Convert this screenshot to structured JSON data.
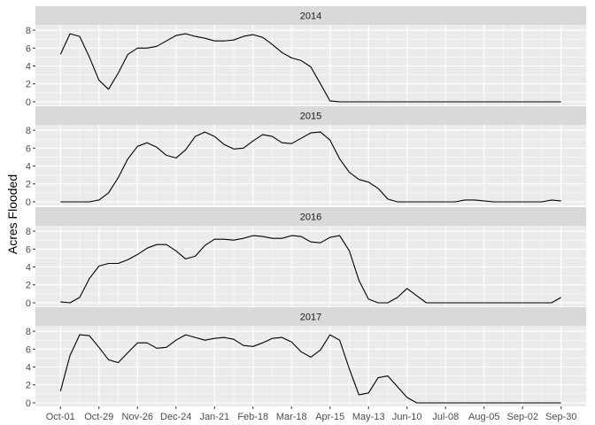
{
  "chart_data": {
    "type": "line",
    "ylabel": "Acres Flooded",
    "xlabel": "",
    "x_ticks": [
      "Oct-01",
      "Oct-29",
      "Nov-26",
      "Dec-24",
      "Jan-21",
      "Feb-18",
      "Mar-18",
      "Apr-15",
      "May-13",
      "Jun-10",
      "Jul-08",
      "Aug-05",
      "Sep-02",
      "Sep-30"
    ],
    "y_ticks": [
      0,
      2,
      4,
      6,
      8
    ],
    "ylim": [
      -0.4,
      8.6
    ],
    "x_day_range": [
      0,
      364
    ],
    "grid": true,
    "panels": [
      {
        "title": "2014",
        "days": [
          0,
          7,
          14,
          21,
          28,
          35,
          42,
          49,
          56,
          63,
          70,
          77,
          84,
          91,
          98,
          105,
          112,
          119,
          126,
          133,
          140,
          147,
          154,
          161,
          168,
          175,
          182,
          189,
          196,
          203,
          210,
          217,
          224,
          231,
          238,
          245,
          252,
          259,
          266,
          273,
          280,
          287,
          294,
          301,
          308,
          315,
          322,
          329,
          336,
          343,
          350,
          357,
          364
        ],
        "values": [
          5.3,
          7.6,
          7.3,
          5.0,
          2.4,
          1.4,
          3.2,
          5.3,
          6.0,
          6.0,
          6.2,
          6.8,
          7.4,
          7.6,
          7.3,
          7.1,
          6.8,
          6.8,
          6.9,
          7.3,
          7.5,
          7.2,
          6.4,
          5.5,
          4.9,
          4.6,
          3.9,
          2.0,
          0.1,
          0.0,
          0.0,
          0.0,
          0.0,
          0.0,
          0.0,
          0.0,
          0.0,
          0.0,
          0.0,
          0.0,
          0.0,
          0.0,
          0.0,
          0.0,
          0.0,
          0.0,
          0.0,
          0.0,
          0.0,
          0.0,
          0.0,
          0.0,
          0.0
        ]
      },
      {
        "title": "2015",
        "days": [
          0,
          7,
          14,
          21,
          28,
          35,
          42,
          49,
          56,
          63,
          70,
          77,
          84,
          91,
          98,
          105,
          112,
          119,
          126,
          133,
          140,
          147,
          154,
          161,
          168,
          175,
          182,
          189,
          196,
          203,
          210,
          217,
          224,
          231,
          238,
          245,
          252,
          259,
          266,
          273,
          280,
          287,
          294,
          301,
          308,
          315,
          322,
          329,
          336,
          343,
          350,
          357,
          364
        ],
        "values": [
          0.0,
          0.0,
          0.0,
          0.0,
          0.2,
          1.0,
          2.7,
          4.8,
          6.2,
          6.6,
          6.1,
          5.2,
          4.9,
          5.8,
          7.3,
          7.8,
          7.3,
          6.4,
          5.9,
          6.0,
          6.8,
          7.5,
          7.3,
          6.6,
          6.5,
          7.1,
          7.7,
          7.8,
          6.9,
          4.8,
          3.3,
          2.5,
          2.2,
          1.5,
          0.3,
          0.0,
          0.0,
          0.0,
          0.0,
          0.0,
          0.0,
          0.0,
          0.2,
          0.2,
          0.1,
          0.0,
          0.0,
          0.0,
          0.0,
          0.0,
          0.0,
          0.2,
          0.1
        ]
      },
      {
        "title": "2016",
        "days": [
          0,
          7,
          14,
          21,
          28,
          35,
          42,
          49,
          56,
          63,
          70,
          77,
          84,
          91,
          98,
          105,
          112,
          119,
          126,
          133,
          140,
          147,
          154,
          161,
          168,
          175,
          182,
          189,
          196,
          203,
          210,
          217,
          224,
          231,
          238,
          245,
          252,
          259,
          266,
          273,
          280,
          287,
          294,
          301,
          308,
          315,
          322,
          329,
          336,
          343,
          350,
          357,
          364
        ],
        "values": [
          0.1,
          0.0,
          0.6,
          2.7,
          4.1,
          4.4,
          4.4,
          4.8,
          5.4,
          6.1,
          6.5,
          6.5,
          5.8,
          4.9,
          5.2,
          6.4,
          7.1,
          7.1,
          7.0,
          7.2,
          7.5,
          7.4,
          7.2,
          7.2,
          7.5,
          7.4,
          6.8,
          6.7,
          7.3,
          7.5,
          5.8,
          2.5,
          0.4,
          0.0,
          0.0,
          0.6,
          1.6,
          0.8,
          0.0,
          0.0,
          0.0,
          0.0,
          0.0,
          0.0,
          0.0,
          0.0,
          0.0,
          0.0,
          0.0,
          0.0,
          0.0,
          0.0,
          0.6
        ]
      },
      {
        "title": "2017",
        "days": [
          0,
          7,
          14,
          21,
          28,
          35,
          42,
          49,
          56,
          63,
          70,
          77,
          84,
          91,
          98,
          105,
          112,
          119,
          126,
          133,
          140,
          147,
          154,
          161,
          168,
          175,
          182,
          189,
          196,
          203,
          210,
          217,
          224,
          231,
          238,
          245,
          252,
          259,
          266,
          273,
          280,
          287,
          294,
          301,
          308,
          315,
          322,
          329,
          336,
          343,
          350,
          357,
          364
        ],
        "values": [
          1.3,
          5.3,
          7.6,
          7.5,
          6.2,
          4.8,
          4.5,
          5.6,
          6.7,
          6.7,
          6.1,
          6.2,
          7.0,
          7.6,
          7.3,
          7.0,
          7.2,
          7.3,
          7.1,
          6.4,
          6.3,
          6.7,
          7.2,
          7.3,
          6.8,
          5.7,
          5.1,
          5.9,
          7.6,
          7.0,
          3.8,
          0.9,
          1.1,
          2.8,
          3.0,
          1.8,
          0.6,
          0.0,
          0.0,
          0.0,
          0.0,
          0.0,
          0.0,
          0.0,
          0.0,
          0.0,
          0.0,
          0.0,
          0.0,
          0.0,
          0.0,
          0.0,
          0.0
        ]
      }
    ]
  },
  "colors": {
    "panel_bg": "#ebebeb",
    "strip_bg": "#d9d9d9",
    "grid_major": "#ffffff",
    "line": "#000000",
    "tick_text": "#4d4d4d",
    "tick_mark": "#333333"
  }
}
